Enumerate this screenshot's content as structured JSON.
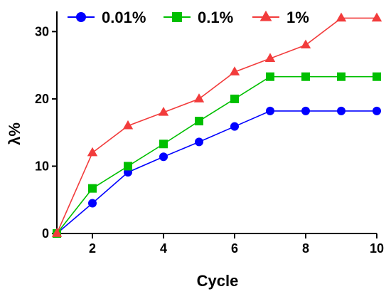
{
  "chart_data": {
    "type": "line",
    "xlabel": "Cycle",
    "ylabel": "λ%",
    "xlim": [
      1,
      10
    ],
    "ylim": [
      0,
      33
    ],
    "x_ticks": [
      2,
      4,
      6,
      8,
      10
    ],
    "y_ticks": [
      0,
      10,
      20,
      30
    ],
    "grid": false,
    "legend_position": "top",
    "x": [
      1,
      2,
      3,
      4,
      5,
      6,
      7,
      8,
      9,
      10
    ],
    "series": [
      {
        "name": "0.01%",
        "color": "#0000ff",
        "marker": "circle",
        "values": [
          0,
          4.5,
          9.1,
          11.4,
          13.6,
          15.9,
          18.2,
          18.2,
          18.2,
          18.2
        ]
      },
      {
        "name": "0.1%",
        "color": "#00bf00",
        "marker": "square",
        "values": [
          0,
          6.7,
          10.0,
          13.3,
          16.7,
          20.0,
          23.3,
          23.3,
          23.3,
          23.3
        ]
      },
      {
        "name": "1%",
        "color": "#f23c3c",
        "marker": "triangle",
        "values": [
          0,
          12,
          16,
          18,
          20,
          24,
          26,
          28,
          32,
          32
        ]
      }
    ]
  }
}
